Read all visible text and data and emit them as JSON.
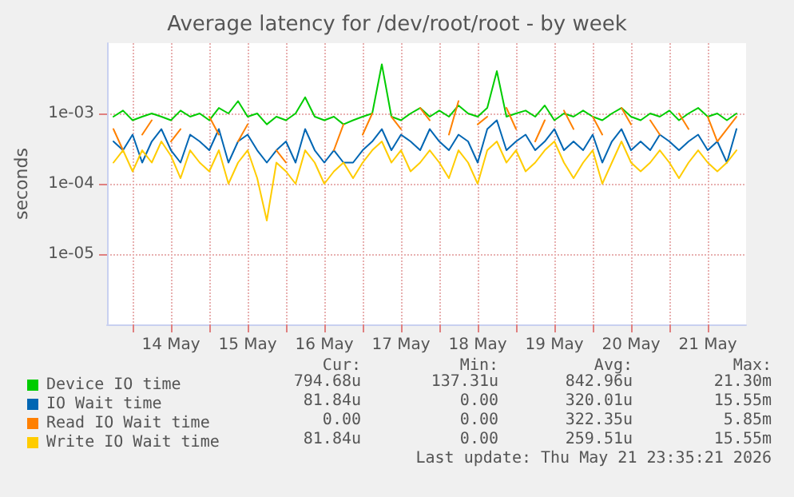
{
  "chart_data": {
    "type": "line",
    "title": "Average latency for /dev/root/root - by week",
    "ylabel": "seconds",
    "x": [
      "2026-05-13T18:00",
      "2026-05-13T21:00",
      "2026-05-14T00:00",
      "2026-05-14T03:00",
      "2026-05-14T06:00",
      "2026-05-14T09:00",
      "2026-05-14T12:00",
      "2026-05-14T15:00",
      "2026-05-14T18:00",
      "2026-05-14T21:00",
      "2026-05-15T00:00",
      "2026-05-15T03:00",
      "2026-05-15T06:00",
      "2026-05-15T09:00",
      "2026-05-15T12:00",
      "2026-05-15T15:00",
      "2026-05-15T18:00",
      "2026-05-15T21:00",
      "2026-05-16T00:00",
      "2026-05-16T03:00",
      "2026-05-16T06:00",
      "2026-05-16T09:00",
      "2026-05-16T12:00",
      "2026-05-16T15:00",
      "2026-05-16T18:00",
      "2026-05-16T21:00",
      "2026-05-17T00:00",
      "2026-05-17T03:00",
      "2026-05-17T06:00",
      "2026-05-17T09:00",
      "2026-05-17T12:00",
      "2026-05-17T15:00",
      "2026-05-17T18:00",
      "2026-05-17T21:00",
      "2026-05-18T00:00",
      "2026-05-18T03:00",
      "2026-05-18T06:00",
      "2026-05-18T09:00",
      "2026-05-18T12:00",
      "2026-05-18T15:00",
      "2026-05-18T18:00",
      "2026-05-18T21:00",
      "2026-05-19T00:00",
      "2026-05-19T03:00",
      "2026-05-19T06:00",
      "2026-05-19T09:00",
      "2026-05-19T12:00",
      "2026-05-19T15:00",
      "2026-05-19T18:00",
      "2026-05-19T21:00",
      "2026-05-20T00:00",
      "2026-05-20T03:00",
      "2026-05-20T06:00",
      "2026-05-20T09:00",
      "2026-05-20T12:00",
      "2026-05-20T15:00",
      "2026-05-20T18:00",
      "2026-05-20T21:00",
      "2026-05-21T00:00",
      "2026-05-21T03:00",
      "2026-05-21T06:00",
      "2026-05-21T09:00",
      "2026-05-21T12:00",
      "2026-05-21T15:00",
      "2026-05-21T18:00",
      "2026-05-21T21:00"
    ],
    "series": [
      {
        "name": "Device IO time",
        "color": "#00cc00",
        "values": [
          0.0009,
          0.0011,
          0.0008,
          0.0009,
          0.001,
          0.0009,
          0.0008,
          0.0011,
          0.0009,
          0.001,
          0.0008,
          0.0012,
          0.001,
          0.0015,
          0.0009,
          0.001,
          0.0007,
          0.0009,
          0.0008,
          0.001,
          0.0017,
          0.0009,
          0.0008,
          0.0009,
          0.0007,
          0.0008,
          0.0009,
          0.001,
          0.005,
          0.0009,
          0.0008,
          0.001,
          0.0012,
          0.0009,
          0.0011,
          0.0009,
          0.0013,
          0.001,
          0.0009,
          0.0012,
          0.004,
          0.0009,
          0.001,
          0.0011,
          0.0009,
          0.0013,
          0.0008,
          0.001,
          0.0009,
          0.0011,
          0.0009,
          0.0008,
          0.001,
          0.0012,
          0.0009,
          0.0008,
          0.001,
          0.0009,
          0.0011,
          0.0008,
          0.001,
          0.0012,
          0.0009,
          0.001,
          0.0008,
          0.001
        ]
      },
      {
        "name": "IO Wait time",
        "color": "#0066b3",
        "values": [
          0.0004,
          0.0003,
          0.0005,
          0.0002,
          0.0004,
          0.0006,
          0.0003,
          0.0002,
          0.0005,
          0.0004,
          0.0003,
          0.0006,
          0.0002,
          0.0004,
          0.0005,
          0.0003,
          0.0002,
          0.0003,
          0.0004,
          0.0002,
          0.0006,
          0.0003,
          0.0002,
          0.0003,
          0.0002,
          0.0002,
          0.0003,
          0.0004,
          0.0006,
          0.0003,
          0.0005,
          0.0004,
          0.0003,
          0.0006,
          0.0004,
          0.0003,
          0.0005,
          0.0004,
          0.0002,
          0.0006,
          0.0008,
          0.0003,
          0.0004,
          0.0005,
          0.0003,
          0.0004,
          0.0006,
          0.0003,
          0.0004,
          0.0003,
          0.0005,
          0.0002,
          0.0004,
          0.0006,
          0.0003,
          0.0004,
          0.0003,
          0.0005,
          0.0004,
          0.0003,
          0.0004,
          0.0005,
          0.0003,
          0.0004,
          0.0002,
          0.0006
        ]
      },
      {
        "name": "Read IO Wait time",
        "color": "#ff8000",
        "values": [
          0.0006,
          0.0003,
          null,
          0.0005,
          0.0008,
          null,
          0.0004,
          0.0006,
          null,
          null,
          0.0009,
          0.0005,
          null,
          0.0004,
          0.0007,
          null,
          null,
          0.0003,
          0.0002,
          null,
          null,
          null,
          null,
          0.0003,
          0.0007,
          null,
          0.0005,
          0.001,
          null,
          0.0009,
          0.0006,
          null,
          0.0012,
          0.0008,
          null,
          0.0005,
          0.0015,
          null,
          0.0007,
          0.0009,
          null,
          0.0012,
          0.0006,
          null,
          0.0004,
          0.0008,
          null,
          0.0011,
          0.0006,
          null,
          0.0009,
          0.0005,
          null,
          0.0012,
          0.0007,
          null,
          0.0008,
          0.0005,
          null,
          0.001,
          0.0006,
          null,
          0.0009,
          0.0004,
          0.0006,
          0.0009
        ]
      },
      {
        "name": "Write IO Wait time",
        "color": "#ffcc00",
        "values": [
          0.0002,
          0.0003,
          0.00015,
          0.0003,
          0.0002,
          0.0004,
          0.00025,
          0.00012,
          0.0003,
          0.0002,
          0.00015,
          0.0003,
          0.0001,
          0.0002,
          0.0003,
          0.00012,
          3e-05,
          0.0002,
          0.00015,
          0.0001,
          0.0003,
          0.0002,
          0.0001,
          0.00015,
          0.0002,
          0.00012,
          0.0002,
          0.0003,
          0.0004,
          0.0002,
          0.0003,
          0.00015,
          0.0002,
          0.0003,
          0.0002,
          0.00012,
          0.0003,
          0.0002,
          0.0001,
          0.0003,
          0.0004,
          0.0002,
          0.0003,
          0.00015,
          0.0002,
          0.0003,
          0.0004,
          0.0002,
          0.00012,
          0.0002,
          0.0003,
          0.0001,
          0.0002,
          0.0004,
          0.0002,
          0.00015,
          0.0002,
          0.0003,
          0.0002,
          0.00012,
          0.0002,
          0.0003,
          0.0002,
          0.00015,
          0.0002,
          0.0003
        ]
      }
    ],
    "xlim": [
      "2026-05-13T16:00",
      "2026-05-22T00:00"
    ],
    "xticks": [
      {
        "value": "2026-05-14T00:00",
        "label": null
      },
      {
        "value": "2026-05-14T12:00",
        "label": "14 May"
      },
      {
        "value": "2026-05-15T00:00",
        "label": null
      },
      {
        "value": "2026-05-15T12:00",
        "label": "15 May"
      },
      {
        "value": "2026-05-16T00:00",
        "label": null
      },
      {
        "value": "2026-05-16T12:00",
        "label": "16 May"
      },
      {
        "value": "2026-05-17T00:00",
        "label": null
      },
      {
        "value": "2026-05-17T12:00",
        "label": "17 May"
      },
      {
        "value": "2026-05-18T00:00",
        "label": null
      },
      {
        "value": "2026-05-18T12:00",
        "label": "18 May"
      },
      {
        "value": "2026-05-19T00:00",
        "label": null
      },
      {
        "value": "2026-05-19T12:00",
        "label": "19 May"
      },
      {
        "value": "2026-05-20T00:00",
        "label": null
      },
      {
        "value": "2026-05-20T12:00",
        "label": "20 May"
      },
      {
        "value": "2026-05-21T00:00",
        "label": null
      },
      {
        "value": "2026-05-21T12:00",
        "label": "21 May"
      }
    ],
    "ylim": [
      1e-06,
      0.01
    ],
    "yticks": [
      {
        "value": 1e-05,
        "label": "1e-05"
      },
      {
        "value": 0.0001,
        "label": "1e-04"
      },
      {
        "value": 0.001,
        "label": "1e-03"
      }
    ],
    "log": "y",
    "grid": true,
    "legend": "bottom left",
    "marker": "none",
    "line_style": "solid",
    "annotations": [
      "Cur:",
      "Min:",
      "Avg:",
      "Max:",
      "794.68u",
      "137.31u",
      "842.96u",
      "21.30m",
      "81.84u",
      "0.00",
      "320.01u",
      "15.55m",
      "0.00",
      "0.00",
      "322.35u",
      "5.85m",
      "81.84u",
      "0.00",
      "259.51u",
      "15.55m",
      "Last update: Thu May 21 23:35:21 2026"
    ]
  }
}
